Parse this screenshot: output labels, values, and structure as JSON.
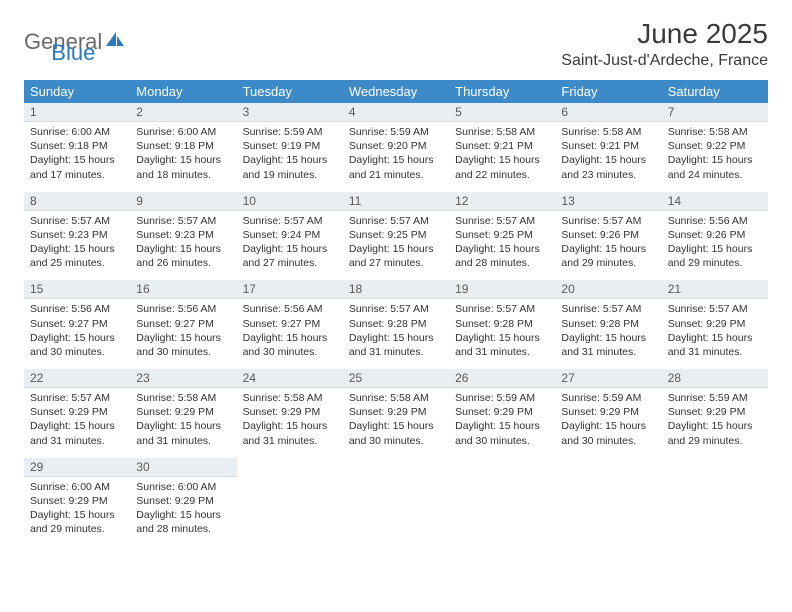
{
  "brand": {
    "part1": "General",
    "part2": "Blue"
  },
  "title": "June 2025",
  "location": "Saint-Just-d'Ardeche, France",
  "colors": {
    "header_bg": "#3c8bc8",
    "header_text": "#ffffff",
    "daynum_bg": "#e9eef2",
    "week_border": "#2a6aa0",
    "brand_gray": "#6a6a6a",
    "brand_blue": "#2a7ac0"
  },
  "weekdays": [
    "Sunday",
    "Monday",
    "Tuesday",
    "Wednesday",
    "Thursday",
    "Friday",
    "Saturday"
  ],
  "weeks": [
    [
      {
        "n": "1",
        "sr": "Sunrise: 6:00 AM",
        "ss": "Sunset: 9:18 PM",
        "d1": "Daylight: 15 hours",
        "d2": "and 17 minutes."
      },
      {
        "n": "2",
        "sr": "Sunrise: 6:00 AM",
        "ss": "Sunset: 9:18 PM",
        "d1": "Daylight: 15 hours",
        "d2": "and 18 minutes."
      },
      {
        "n": "3",
        "sr": "Sunrise: 5:59 AM",
        "ss": "Sunset: 9:19 PM",
        "d1": "Daylight: 15 hours",
        "d2": "and 19 minutes."
      },
      {
        "n": "4",
        "sr": "Sunrise: 5:59 AM",
        "ss": "Sunset: 9:20 PM",
        "d1": "Daylight: 15 hours",
        "d2": "and 21 minutes."
      },
      {
        "n": "5",
        "sr": "Sunrise: 5:58 AM",
        "ss": "Sunset: 9:21 PM",
        "d1": "Daylight: 15 hours",
        "d2": "and 22 minutes."
      },
      {
        "n": "6",
        "sr": "Sunrise: 5:58 AM",
        "ss": "Sunset: 9:21 PM",
        "d1": "Daylight: 15 hours",
        "d2": "and 23 minutes."
      },
      {
        "n": "7",
        "sr": "Sunrise: 5:58 AM",
        "ss": "Sunset: 9:22 PM",
        "d1": "Daylight: 15 hours",
        "d2": "and 24 minutes."
      }
    ],
    [
      {
        "n": "8",
        "sr": "Sunrise: 5:57 AM",
        "ss": "Sunset: 9:23 PM",
        "d1": "Daylight: 15 hours",
        "d2": "and 25 minutes."
      },
      {
        "n": "9",
        "sr": "Sunrise: 5:57 AM",
        "ss": "Sunset: 9:23 PM",
        "d1": "Daylight: 15 hours",
        "d2": "and 26 minutes."
      },
      {
        "n": "10",
        "sr": "Sunrise: 5:57 AM",
        "ss": "Sunset: 9:24 PM",
        "d1": "Daylight: 15 hours",
        "d2": "and 27 minutes."
      },
      {
        "n": "11",
        "sr": "Sunrise: 5:57 AM",
        "ss": "Sunset: 9:25 PM",
        "d1": "Daylight: 15 hours",
        "d2": "and 27 minutes."
      },
      {
        "n": "12",
        "sr": "Sunrise: 5:57 AM",
        "ss": "Sunset: 9:25 PM",
        "d1": "Daylight: 15 hours",
        "d2": "and 28 minutes."
      },
      {
        "n": "13",
        "sr": "Sunrise: 5:57 AM",
        "ss": "Sunset: 9:26 PM",
        "d1": "Daylight: 15 hours",
        "d2": "and 29 minutes."
      },
      {
        "n": "14",
        "sr": "Sunrise: 5:56 AM",
        "ss": "Sunset: 9:26 PM",
        "d1": "Daylight: 15 hours",
        "d2": "and 29 minutes."
      }
    ],
    [
      {
        "n": "15",
        "sr": "Sunrise: 5:56 AM",
        "ss": "Sunset: 9:27 PM",
        "d1": "Daylight: 15 hours",
        "d2": "and 30 minutes."
      },
      {
        "n": "16",
        "sr": "Sunrise: 5:56 AM",
        "ss": "Sunset: 9:27 PM",
        "d1": "Daylight: 15 hours",
        "d2": "and 30 minutes."
      },
      {
        "n": "17",
        "sr": "Sunrise: 5:56 AM",
        "ss": "Sunset: 9:27 PM",
        "d1": "Daylight: 15 hours",
        "d2": "and 30 minutes."
      },
      {
        "n": "18",
        "sr": "Sunrise: 5:57 AM",
        "ss": "Sunset: 9:28 PM",
        "d1": "Daylight: 15 hours",
        "d2": "and 31 minutes."
      },
      {
        "n": "19",
        "sr": "Sunrise: 5:57 AM",
        "ss": "Sunset: 9:28 PM",
        "d1": "Daylight: 15 hours",
        "d2": "and 31 minutes."
      },
      {
        "n": "20",
        "sr": "Sunrise: 5:57 AM",
        "ss": "Sunset: 9:28 PM",
        "d1": "Daylight: 15 hours",
        "d2": "and 31 minutes."
      },
      {
        "n": "21",
        "sr": "Sunrise: 5:57 AM",
        "ss": "Sunset: 9:29 PM",
        "d1": "Daylight: 15 hours",
        "d2": "and 31 minutes."
      }
    ],
    [
      {
        "n": "22",
        "sr": "Sunrise: 5:57 AM",
        "ss": "Sunset: 9:29 PM",
        "d1": "Daylight: 15 hours",
        "d2": "and 31 minutes."
      },
      {
        "n": "23",
        "sr": "Sunrise: 5:58 AM",
        "ss": "Sunset: 9:29 PM",
        "d1": "Daylight: 15 hours",
        "d2": "and 31 minutes."
      },
      {
        "n": "24",
        "sr": "Sunrise: 5:58 AM",
        "ss": "Sunset: 9:29 PM",
        "d1": "Daylight: 15 hours",
        "d2": "and 31 minutes."
      },
      {
        "n": "25",
        "sr": "Sunrise: 5:58 AM",
        "ss": "Sunset: 9:29 PM",
        "d1": "Daylight: 15 hours",
        "d2": "and 30 minutes."
      },
      {
        "n": "26",
        "sr": "Sunrise: 5:59 AM",
        "ss": "Sunset: 9:29 PM",
        "d1": "Daylight: 15 hours",
        "d2": "and 30 minutes."
      },
      {
        "n": "27",
        "sr": "Sunrise: 5:59 AM",
        "ss": "Sunset: 9:29 PM",
        "d1": "Daylight: 15 hours",
        "d2": "and 30 minutes."
      },
      {
        "n": "28",
        "sr": "Sunrise: 5:59 AM",
        "ss": "Sunset: 9:29 PM",
        "d1": "Daylight: 15 hours",
        "d2": "and 29 minutes."
      }
    ],
    [
      {
        "n": "29",
        "sr": "Sunrise: 6:00 AM",
        "ss": "Sunset: 9:29 PM",
        "d1": "Daylight: 15 hours",
        "d2": "and 29 minutes."
      },
      {
        "n": "30",
        "sr": "Sunrise: 6:00 AM",
        "ss": "Sunset: 9:29 PM",
        "d1": "Daylight: 15 hours",
        "d2": "and 28 minutes."
      },
      null,
      null,
      null,
      null,
      null
    ]
  ]
}
